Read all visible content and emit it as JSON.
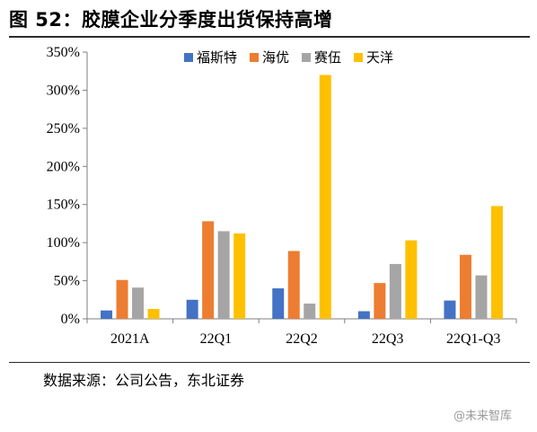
{
  "page": {
    "title": "图 52：胶膜企业分季度出货保持高增",
    "source": "数据来源：公司公告，东北证券",
    "watermark": "@未来智库"
  },
  "chart_data": {
    "type": "bar",
    "title": "图 52：胶膜企业分季度出货保持高增",
    "xlabel": "",
    "ylabel": "",
    "categories": [
      "2021A",
      "22Q1",
      "22Q2",
      "22Q3",
      "22Q1-Q3"
    ],
    "ylim": [
      0,
      350
    ],
    "yticks": [
      0,
      50,
      100,
      150,
      200,
      250,
      300,
      350
    ],
    "ytick_labels": [
      "0%",
      "50%",
      "100%",
      "150%",
      "200%",
      "250%",
      "300%",
      "350%"
    ],
    "value_unit": "%",
    "grid": false,
    "legend": "top-right",
    "series": [
      {
        "name": "福斯特",
        "color": "#4472C4",
        "values": [
          11,
          25,
          40,
          10,
          24
        ]
      },
      {
        "name": "海优",
        "color": "#ED7D31",
        "values": [
          51,
          128,
          89,
          47,
          84
        ]
      },
      {
        "name": "赛伍",
        "color": "#A5A5A5",
        "values": [
          41,
          115,
          20,
          72,
          57
        ]
      },
      {
        "name": "天洋",
        "color": "#FFC000",
        "values": [
          13,
          112,
          320,
          103,
          148
        ]
      }
    ]
  }
}
